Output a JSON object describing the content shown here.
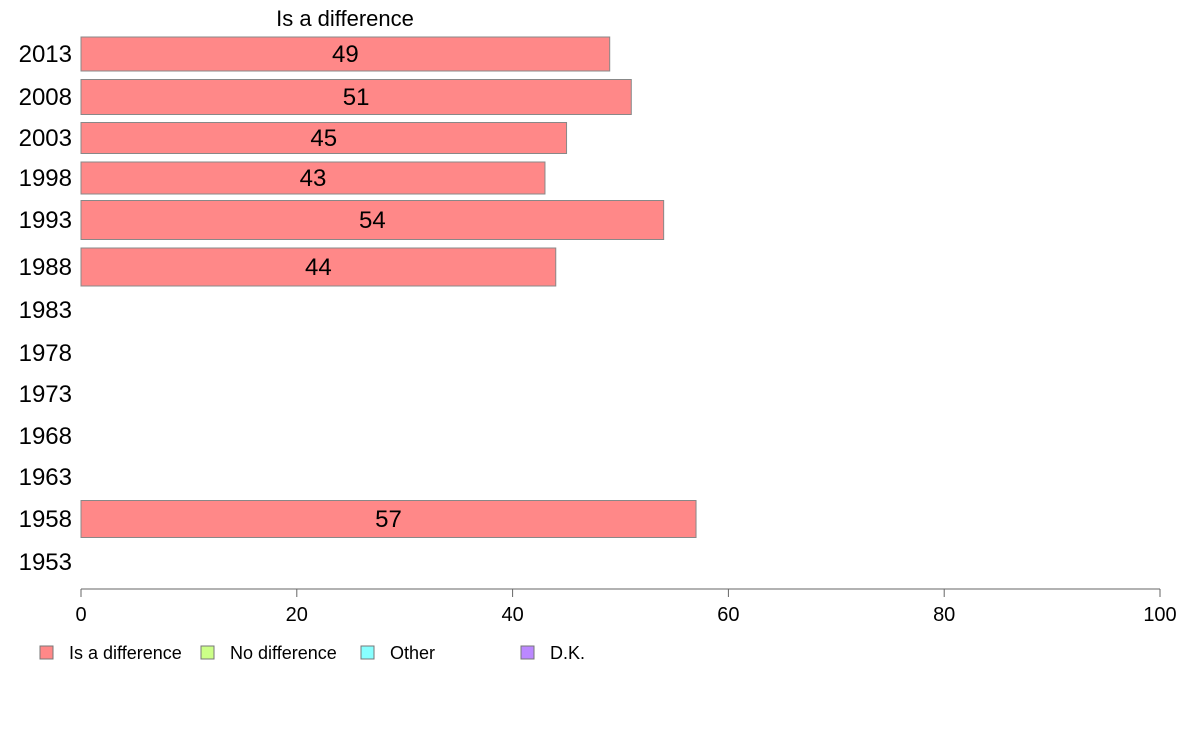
{
  "chart_data": {
    "type": "bar",
    "orientation": "horizontal",
    "title": "Is a difference",
    "categories": [
      "2013",
      "2008",
      "2003",
      "1998",
      "1993",
      "1988",
      "1983",
      "1978",
      "1973",
      "1968",
      "1963",
      "1958",
      "1953"
    ],
    "series": [
      {
        "name": "Is a difference",
        "color": "#ff8888",
        "values": [
          49,
          51,
          45,
          43,
          54,
          44,
          null,
          null,
          null,
          null,
          null,
          57,
          null
        ]
      }
    ],
    "xlim": [
      0,
      100
    ],
    "xticks": [
      "0",
      "20",
      "40",
      "60",
      "80",
      "100"
    ],
    "grid": false,
    "legend": {
      "position": "bottom-left",
      "items": [
        {
          "label": "Is a difference",
          "color": "#ff8888"
        },
        {
          "label": "No difference",
          "color": "#ccff88"
        },
        {
          "label": "Other",
          "color": "#88ffff"
        },
        {
          "label": "D.K.",
          "color": "#bb88ff"
        }
      ]
    }
  }
}
